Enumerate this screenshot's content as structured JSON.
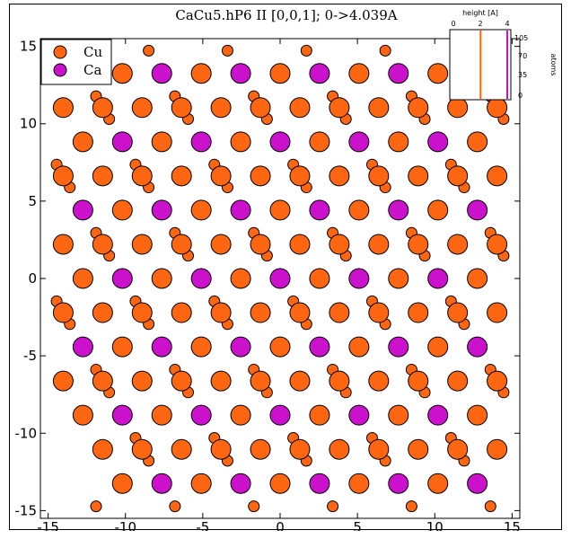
{
  "colors": {
    "cu": "#ff6611",
    "ca": "#cc11cc",
    "outline": "#000000",
    "inset_line": "#ff6600"
  },
  "chart_data": {
    "type": "scatter",
    "title": "CaCu5.hP6 II [0,0,1]; 0->4.039A",
    "xlim": [
      -15.5,
      15.5
    ],
    "ylim": [
      -15.5,
      15.5
    ],
    "x_ticks": [
      -15,
      -10,
      -5,
      0,
      5,
      10,
      15
    ],
    "y_ticks": [
      -15,
      -10,
      -5,
      0,
      5,
      10,
      15
    ],
    "x_tick_labels": [
      "-15",
      "-10",
      "-5",
      "0",
      "5",
      "10",
      "15"
    ],
    "y_tick_labels": [
      "-15",
      "-10",
      "-5",
      "0",
      "5",
      "10",
      "15"
    ],
    "grid": false,
    "legend_position": "top-left",
    "lattice": {
      "a": 5.1,
      "c": 4.039
    },
    "series": [
      {
        "name": "Cu",
        "color": "#ff6611"
      },
      {
        "name": "Ca",
        "color": "#cc11cc"
      }
    ],
    "inset": {
      "xlabel": "height [A]",
      "ylabel": "atoms",
      "x_ticks": [
        "0",
        "2",
        "4"
      ],
      "y_ticks": [
        "0",
        "35",
        "70",
        "105"
      ],
      "xlim": [
        0,
        4.039
      ],
      "ylim": [
        0,
        105
      ],
      "lines_at_height": [
        2.02,
        4.0
      ]
    }
  }
}
